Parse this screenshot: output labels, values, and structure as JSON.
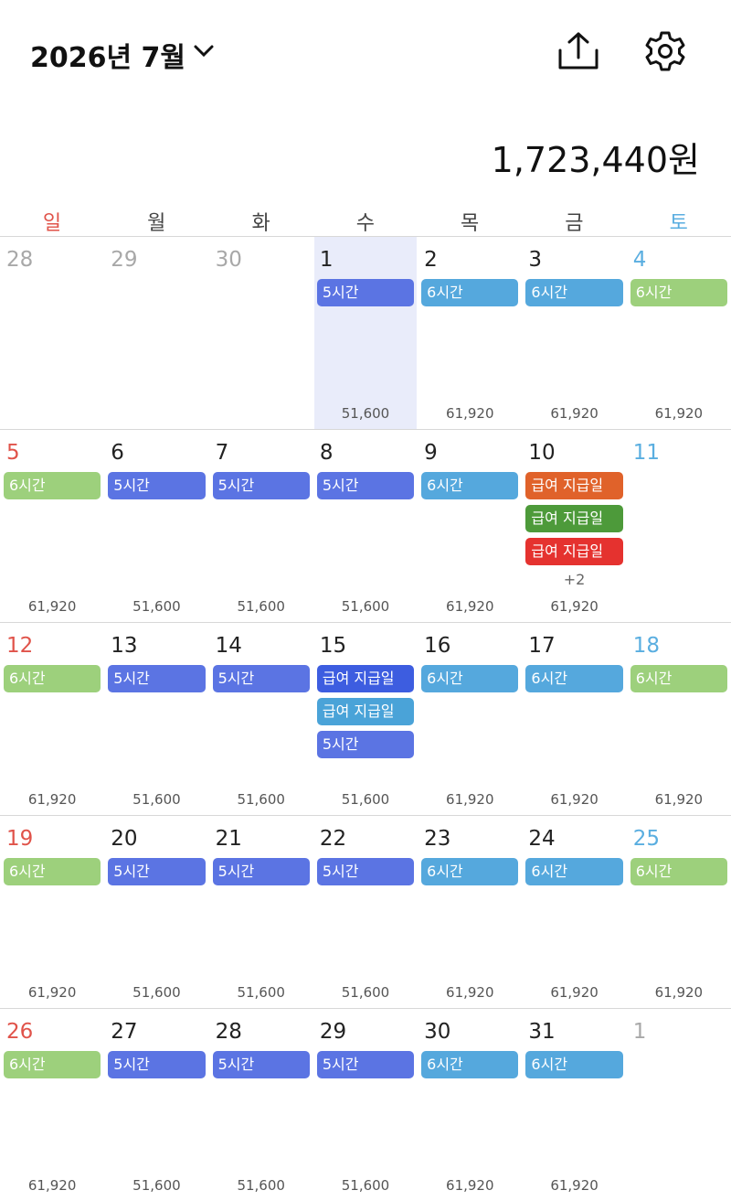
{
  "header": {
    "title": "2026년 7월",
    "total": "1,723,440원"
  },
  "weekdays": [
    {
      "label": "일",
      "color": "#e0534a"
    },
    {
      "label": "월",
      "color": "#444444"
    },
    {
      "label": "화",
      "color": "#444444"
    },
    {
      "label": "수",
      "color": "#444444"
    },
    {
      "label": "목",
      "color": "#444444"
    },
    {
      "label": "금",
      "color": "#444444"
    },
    {
      "label": "토",
      "color": "#5aaee0"
    }
  ],
  "weeks": [
    {
      "days": [
        {
          "date": 28,
          "muted": true
        },
        {
          "date": 29,
          "muted": true
        },
        {
          "date": 30,
          "muted": true
        },
        {
          "date": 1,
          "today": true,
          "events": [
            {
              "label": "5시간",
              "color": "#5b74e3"
            }
          ],
          "amount": "51,600"
        },
        {
          "date": 2,
          "events": [
            {
              "label": "6시간",
              "color": "#55a8dd"
            }
          ],
          "amount": "61,920"
        },
        {
          "date": 3,
          "events": [
            {
              "label": "6시간",
              "color": "#55a8dd"
            }
          ],
          "amount": "61,920"
        },
        {
          "date": 4,
          "events": [
            {
              "label": "6시간",
              "color": "#9dd07c"
            }
          ],
          "amount": "61,920"
        }
      ]
    },
    {
      "days": [
        {
          "date": 5,
          "events": [
            {
              "label": "6시간",
              "color": "#9dd07c"
            }
          ],
          "amount": "61,920"
        },
        {
          "date": 6,
          "events": [
            {
              "label": "5시간",
              "color": "#5b74e3"
            }
          ],
          "amount": "51,600"
        },
        {
          "date": 7,
          "events": [
            {
              "label": "5시간",
              "color": "#5b74e3"
            }
          ],
          "amount": "51,600"
        },
        {
          "date": 8,
          "events": [
            {
              "label": "5시간",
              "color": "#5b74e3"
            }
          ],
          "amount": "51,600"
        },
        {
          "date": 9,
          "events": [
            {
              "label": "6시간",
              "color": "#55a8dd"
            }
          ],
          "amount": "61,920"
        },
        {
          "date": 10,
          "events": [
            {
              "label": "급여 지급일",
              "color": "#e0622a"
            },
            {
              "label": "급여 지급일",
              "color": "#4d9a3a"
            },
            {
              "label": "급여 지급일",
              "color": "#e5322f"
            }
          ],
          "more": "+2",
          "amount": "61,920"
        },
        {
          "date": 11
        }
      ]
    },
    {
      "days": [
        {
          "date": 12,
          "events": [
            {
              "label": "6시간",
              "color": "#9dd07c"
            }
          ],
          "amount": "61,920"
        },
        {
          "date": 13,
          "events": [
            {
              "label": "5시간",
              "color": "#5b74e3"
            }
          ],
          "amount": "51,600"
        },
        {
          "date": 14,
          "events": [
            {
              "label": "5시간",
              "color": "#5b74e3"
            }
          ],
          "amount": "51,600"
        },
        {
          "date": 15,
          "events": [
            {
              "label": "급여 지급일",
              "color": "#3d5de0"
            },
            {
              "label": "급여 지급일",
              "color": "#4aa3d8"
            },
            {
              "label": "5시간",
              "color": "#5b74e3"
            }
          ],
          "amount": "51,600"
        },
        {
          "date": 16,
          "events": [
            {
              "label": "6시간",
              "color": "#55a8dd"
            }
          ],
          "amount": "61,920"
        },
        {
          "date": 17,
          "events": [
            {
              "label": "6시간",
              "color": "#55a8dd"
            }
          ],
          "amount": "61,920"
        },
        {
          "date": 18,
          "events": [
            {
              "label": "6시간",
              "color": "#9dd07c"
            }
          ],
          "amount": "61,920"
        }
      ]
    },
    {
      "days": [
        {
          "date": 19,
          "events": [
            {
              "label": "6시간",
              "color": "#9dd07c"
            }
          ],
          "amount": "61,920"
        },
        {
          "date": 20,
          "events": [
            {
              "label": "5시간",
              "color": "#5b74e3"
            }
          ],
          "amount": "51,600"
        },
        {
          "date": 21,
          "events": [
            {
              "label": "5시간",
              "color": "#5b74e3"
            }
          ],
          "amount": "51,600"
        },
        {
          "date": 22,
          "events": [
            {
              "label": "5시간",
              "color": "#5b74e3"
            }
          ],
          "amount": "51,600"
        },
        {
          "date": 23,
          "events": [
            {
              "label": "6시간",
              "color": "#55a8dd"
            }
          ],
          "amount": "61,920"
        },
        {
          "date": 24,
          "events": [
            {
              "label": "6시간",
              "color": "#55a8dd"
            }
          ],
          "amount": "61,920"
        },
        {
          "date": 25,
          "events": [
            {
              "label": "6시간",
              "color": "#9dd07c"
            }
          ],
          "amount": "61,920"
        }
      ]
    },
    {
      "days": [
        {
          "date": 26,
          "events": [
            {
              "label": "6시간",
              "color": "#9dd07c"
            }
          ],
          "amount": "61,920"
        },
        {
          "date": 27,
          "events": [
            {
              "label": "5시간",
              "color": "#5b74e3"
            }
          ],
          "amount": "51,600"
        },
        {
          "date": 28,
          "events": [
            {
              "label": "5시간",
              "color": "#5b74e3"
            }
          ],
          "amount": "51,600"
        },
        {
          "date": 29,
          "events": [
            {
              "label": "5시간",
              "color": "#5b74e3"
            }
          ],
          "amount": "51,600"
        },
        {
          "date": 30,
          "events": [
            {
              "label": "6시간",
              "color": "#55a8dd"
            }
          ],
          "amount": "61,920"
        },
        {
          "date": 31,
          "events": [
            {
              "label": "6시간",
              "color": "#55a8dd"
            }
          ],
          "amount": "61,920"
        },
        {
          "date": 1,
          "muted": true
        }
      ]
    }
  ]
}
